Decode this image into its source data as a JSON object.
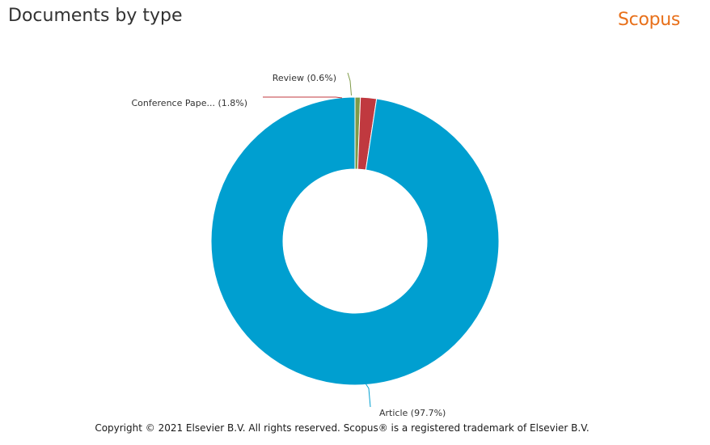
{
  "header": {
    "title": "Documents by type",
    "brand": "Scopus"
  },
  "colors": {
    "brand": "#e8701a",
    "article": "#009fd0",
    "conference": "#c0393f",
    "review": "#7f9a48"
  },
  "footer": {
    "copyright": "Copyright © 2021 Elsevier B.V. All rights reserved. Scopus® is a registered trademark of Elsevier B.V."
  },
  "chart_data": {
    "type": "pie",
    "style": "donut",
    "title": "Documents by type",
    "slices": [
      {
        "label": "Review (0.6%)",
        "category": "Review",
        "value": 0.6,
        "color": "#7f9a48"
      },
      {
        "label": "Conference Pape... (1.8%)",
        "category": "Conference Paper",
        "value": 1.8,
        "color": "#c0393f"
      },
      {
        "label": "Article (97.7%)",
        "category": "Article",
        "value": 97.7,
        "color": "#009fd0"
      }
    ]
  }
}
